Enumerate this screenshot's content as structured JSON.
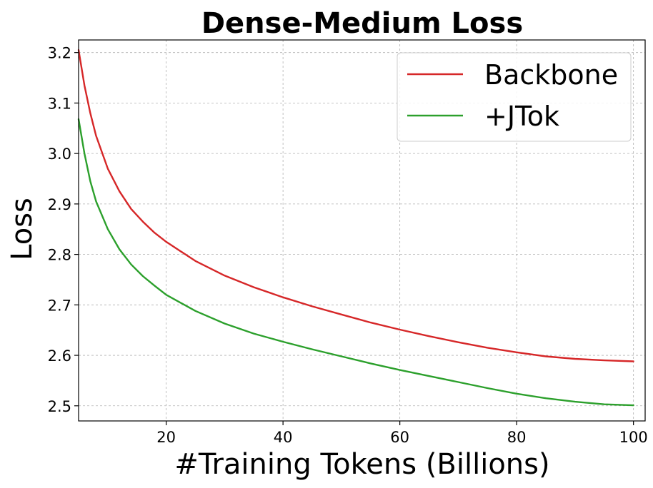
{
  "chart_data": {
    "type": "line",
    "title": "Dense-Medium Loss",
    "xlabel": "#Training Tokens (Billions)",
    "ylabel": "Loss",
    "xlim": [
      5,
      102
    ],
    "ylim": [
      2.47,
      3.225
    ],
    "xticks": [
      20,
      40,
      60,
      80,
      100
    ],
    "yticks": [
      2.5,
      2.6,
      2.7,
      2.8,
      2.9,
      3.0,
      3.1,
      3.2
    ],
    "grid": true,
    "legend_position": "top-right",
    "series": [
      {
        "name": "Backbone",
        "color": "#d62728",
        "x": [
          5,
          6,
          7,
          8,
          10,
          12,
          14,
          16,
          18,
          20,
          25,
          30,
          35,
          40,
          45,
          50,
          55,
          60,
          65,
          70,
          75,
          80,
          85,
          90,
          95,
          100
        ],
        "y": [
          3.205,
          3.135,
          3.08,
          3.035,
          2.97,
          2.925,
          2.89,
          2.865,
          2.843,
          2.825,
          2.787,
          2.758,
          2.735,
          2.715,
          2.697,
          2.681,
          2.665,
          2.651,
          2.638,
          2.626,
          2.615,
          2.606,
          2.598,
          2.593,
          2.59,
          2.588
        ]
      },
      {
        "name": "+JTok",
        "color": "#2ca02c",
        "x": [
          5,
          6,
          7,
          8,
          10,
          12,
          14,
          16,
          18,
          20,
          25,
          30,
          35,
          40,
          45,
          50,
          55,
          60,
          65,
          70,
          75,
          80,
          85,
          90,
          95,
          100
        ],
        "y": [
          3.068,
          3.0,
          2.945,
          2.905,
          2.85,
          2.81,
          2.78,
          2.757,
          2.738,
          2.72,
          2.688,
          2.663,
          2.643,
          2.627,
          2.612,
          2.598,
          2.584,
          2.571,
          2.559,
          2.547,
          2.535,
          2.524,
          2.515,
          2.508,
          2.503,
          2.501
        ]
      }
    ]
  }
}
